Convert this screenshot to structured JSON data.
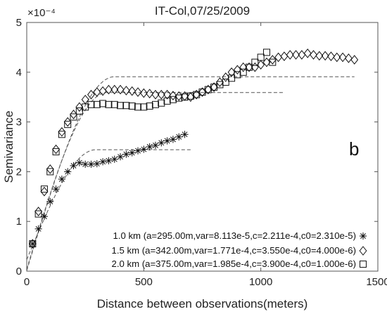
{
  "chart_data": {
    "type": "scatter",
    "title": "IT-Col,07/25/2009",
    "xlabel": "Distance between observations(meters)",
    "ylabel": "Semivariance",
    "exponent_label": "×10⁻⁴",
    "panel_label": "b",
    "xlim": [
      0,
      1500
    ],
    "ylim": [
      0,
      5
    ],
    "xticks": [
      "0",
      "500",
      "1000",
      "1500"
    ],
    "yticks": [
      "0",
      "1",
      "2",
      "3",
      "4",
      "5"
    ],
    "grid": false,
    "legend_position": "bottom-right",
    "series": [
      {
        "name": "1.0 km (a=295.00m,var=8.113e-5,c=2.211e-4,c0=2.310e-5)",
        "marker": "asterisk",
        "marker_glyph": "*",
        "model": {
          "nugget": 0.231,
          "sill_partial": 2.211,
          "range": 295,
          "max_x": 700
        },
        "x": [
          25,
          50,
          75,
          100,
          125,
          150,
          175,
          200,
          225,
          250,
          275,
          300,
          325,
          350,
          375,
          400,
          425,
          450,
          475,
          500,
          525,
          550,
          575,
          600,
          625,
          650,
          675
        ],
        "y": [
          0.55,
          0.85,
          1.1,
          1.4,
          1.65,
          1.85,
          2.0,
          2.12,
          2.18,
          2.15,
          2.15,
          2.16,
          2.2,
          2.22,
          2.25,
          2.3,
          2.35,
          2.38,
          2.42,
          2.45,
          2.5,
          2.53,
          2.58,
          2.62,
          2.65,
          2.7,
          2.75
        ]
      },
      {
        "name": "1.5 km (a=342.00m,var=1.771e-4,c=3.550e-4,c0=4.000e-6)",
        "marker": "diamond",
        "marker_glyph": "◇",
        "model": {
          "nugget": 0.04,
          "sill_partial": 3.55,
          "range": 342,
          "max_x": 1100
        },
        "x": [
          25,
          50,
          75,
          100,
          125,
          150,
          175,
          200,
          225,
          250,
          275,
          300,
          325,
          350,
          375,
          400,
          425,
          450,
          475,
          500,
          525,
          550,
          575,
          600,
          625,
          650,
          675,
          700,
          725,
          750,
          775,
          800,
          825,
          850,
          875,
          900,
          925,
          950,
          975,
          1000,
          1025,
          1050,
          1075,
          1100,
          1125,
          1150,
          1175,
          1200,
          1225,
          1250,
          1275,
          1300,
          1325,
          1350,
          1375,
          1400
        ],
        "y": [
          0.55,
          1.2,
          1.6,
          2.05,
          2.45,
          2.8,
          3.0,
          3.15,
          3.3,
          3.45,
          3.55,
          3.6,
          3.62,
          3.65,
          3.65,
          3.65,
          3.63,
          3.62,
          3.6,
          3.58,
          3.57,
          3.55,
          3.55,
          3.55,
          3.53,
          3.52,
          3.52,
          3.5,
          3.55,
          3.6,
          3.65,
          3.7,
          3.8,
          3.9,
          4.0,
          4.05,
          4.1,
          4.1,
          4.1,
          4.15,
          4.2,
          4.25,
          4.3,
          4.32,
          4.35,
          4.35,
          4.35,
          4.38,
          4.35,
          4.33,
          4.33,
          4.32,
          4.3,
          4.3,
          4.28,
          4.25
        ]
      },
      {
        "name": "2.0 km (a=375.00m,var=1.985e-4,c=3.900e-4,c0=1.000e-6)",
        "marker": "square",
        "marker_glyph": "□",
        "model": {
          "nugget": 0.01,
          "sill_partial": 3.9,
          "range": 375,
          "max_x": 1400
        },
        "x": [
          25,
          50,
          75,
          100,
          125,
          150,
          175,
          200,
          225,
          250,
          275,
          300,
          325,
          350,
          375,
          400,
          425,
          450,
          475,
          500,
          525,
          550,
          575,
          600,
          625,
          650,
          675,
          700,
          725,
          750,
          775,
          800,
          825,
          850,
          875,
          900,
          925,
          950,
          975,
          1000,
          1025,
          1050
        ],
        "y": [
          0.55,
          1.15,
          1.65,
          2.0,
          2.4,
          2.75,
          2.95,
          3.1,
          3.22,
          3.3,
          3.35,
          3.35,
          3.37,
          3.35,
          3.35,
          3.33,
          3.33,
          3.32,
          3.3,
          3.3,
          3.32,
          3.35,
          3.38,
          3.42,
          3.45,
          3.48,
          3.5,
          3.52,
          3.55,
          3.6,
          3.65,
          3.7,
          3.75,
          3.8,
          3.88,
          3.95,
          4.0,
          4.1,
          4.2,
          4.3,
          4.4,
          4.2
        ]
      }
    ]
  }
}
